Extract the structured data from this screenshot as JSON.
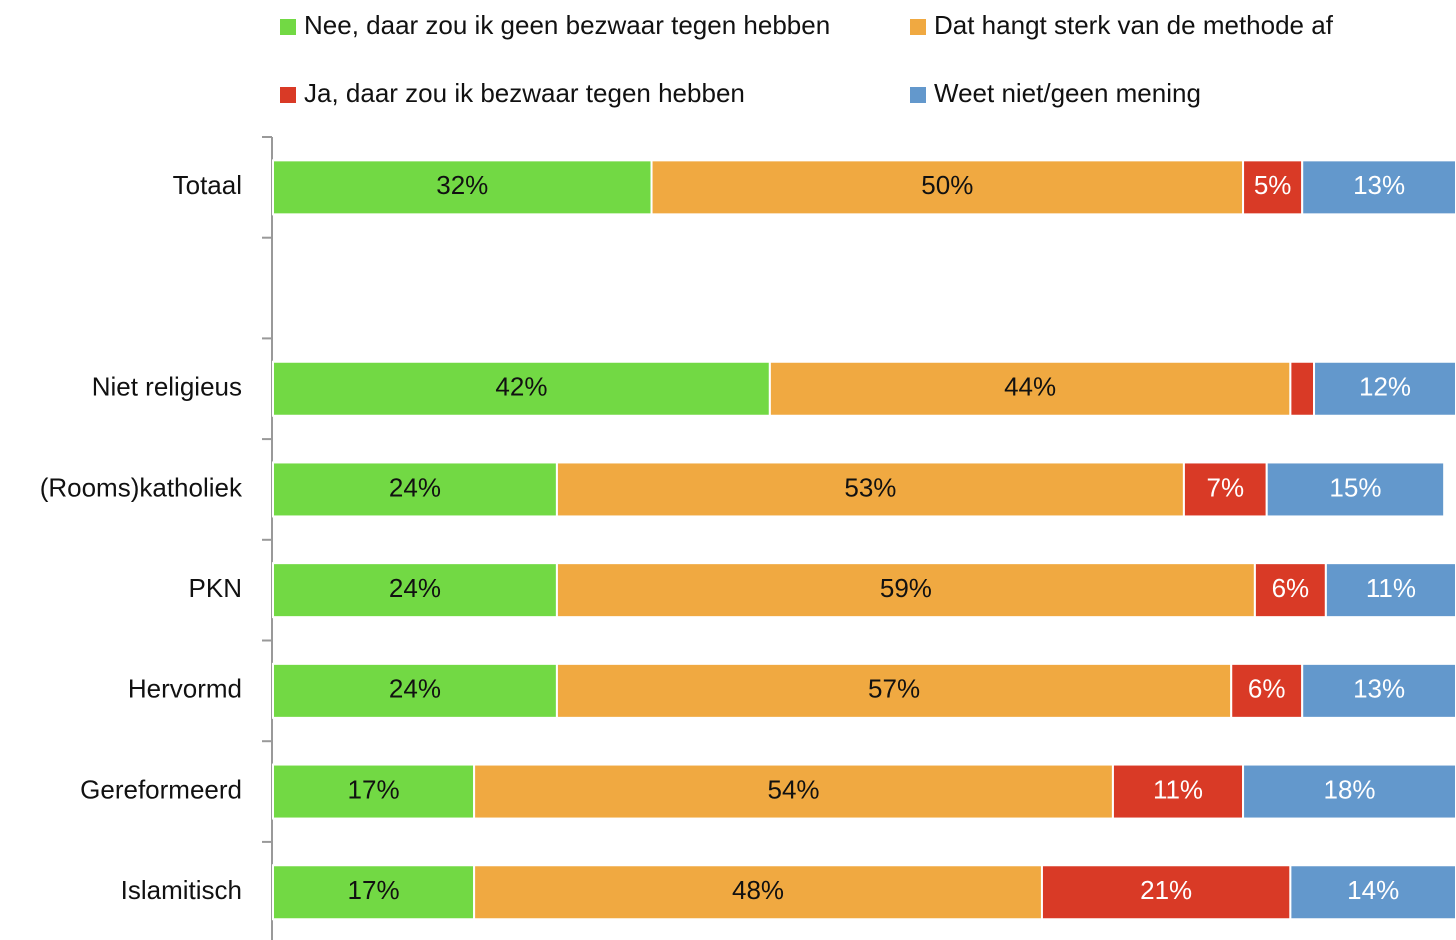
{
  "chart_data": {
    "type": "stacked_bar_horizontal",
    "categories": [
      "Totaal",
      null,
      "Niet religieus",
      "(Rooms)katholiek",
      "PKN",
      "Hervormd",
      "Gereformeerd",
      "Islamitisch"
    ],
    "series": [
      {
        "name": "Nee, daar zou ik geen bezwaar tegen hebben",
        "color": "#72d944",
        "values": [
          32,
          null,
          42,
          24,
          24,
          24,
          17,
          17
        ],
        "value_labels": [
          "32%",
          null,
          "42%",
          "24%",
          "24%",
          "24%",
          "17%",
          "17%"
        ]
      },
      {
        "name": "Dat hangt sterk van de methode af",
        "color": "#f0a941",
        "values": [
          50,
          null,
          44,
          53,
          59,
          57,
          54,
          48
        ],
        "value_labels": [
          "50%",
          null,
          "44%",
          "53%",
          "59%",
          "57%",
          "54%",
          "48%"
        ]
      },
      {
        "name": "Ja, daar zou ik bezwaar tegen hebben",
        "color": "#d93a26",
        "values": [
          5,
          null,
          2,
          7,
          6,
          6,
          11,
          21
        ],
        "value_labels": [
          "5%",
          null,
          null,
          "7%",
          "6%",
          "6%",
          "11%",
          "21%"
        ]
      },
      {
        "name": "Weet niet/geen mening",
        "color": "#6398cc",
        "values": [
          13,
          null,
          12,
          15,
          11,
          13,
          18,
          14
        ],
        "value_labels": [
          "13%",
          null,
          "12%",
          "15%",
          "11%",
          "13%",
          "18%",
          "14%"
        ]
      }
    ],
    "xlim": [
      0,
      100
    ]
  }
}
